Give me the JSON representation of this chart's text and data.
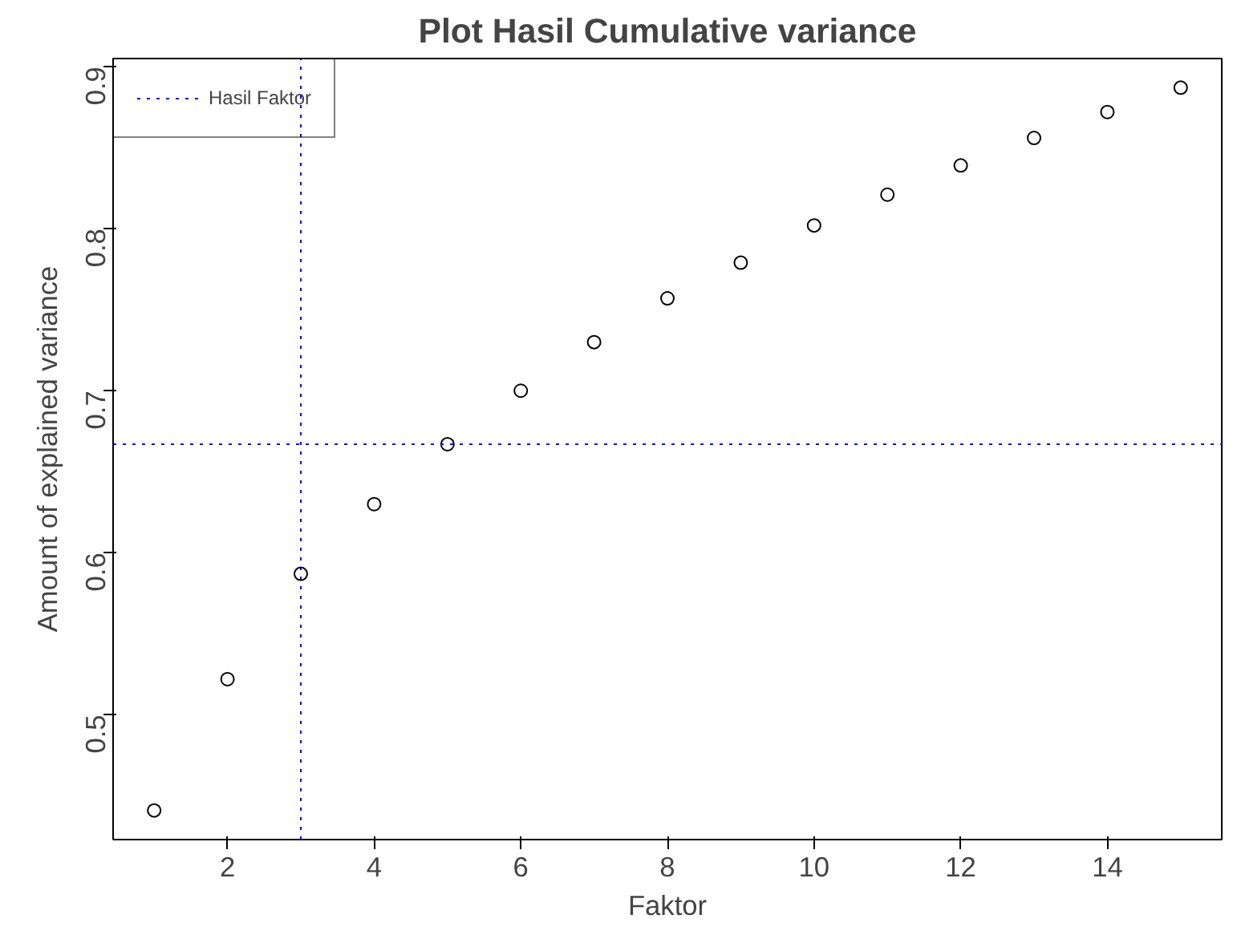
{
  "chart_data": {
    "type": "scatter",
    "title": "Plot Hasil Cumulative variance",
    "xlabel": "Faktor",
    "ylabel": "Amount of explained variance",
    "x": [
      1,
      2,
      3,
      4,
      5,
      6,
      7,
      8,
      9,
      10,
      11,
      12,
      13,
      14,
      15
    ],
    "series": [
      {
        "color": "#000000",
        "values": [
          0.441,
          0.522,
          0.587,
          0.63,
          0.667,
          0.7,
          0.73,
          0.757,
          0.779,
          0.802,
          0.821,
          0.839,
          0.856,
          0.872,
          0.887
        ]
      }
    ],
    "marker": "circle",
    "xlim": [
      0.44,
      15.56
    ],
    "ylim": [
      0.423,
      0.905
    ],
    "xticks": [
      2,
      4,
      6,
      8,
      10,
      12,
      14
    ],
    "yticks": [
      0.5,
      0.6,
      0.7,
      0.8,
      0.9
    ],
    "ref_lines": [
      {
        "axis": "x",
        "value": 3,
        "label": "Hasil Faktor",
        "color": "#0000ff",
        "line_style": "dotted"
      },
      {
        "axis": "y",
        "value": 0.667,
        "label": null,
        "color": "#0000ff",
        "line_style": "dotted"
      }
    ],
    "grid": false,
    "legend": "top left"
  }
}
